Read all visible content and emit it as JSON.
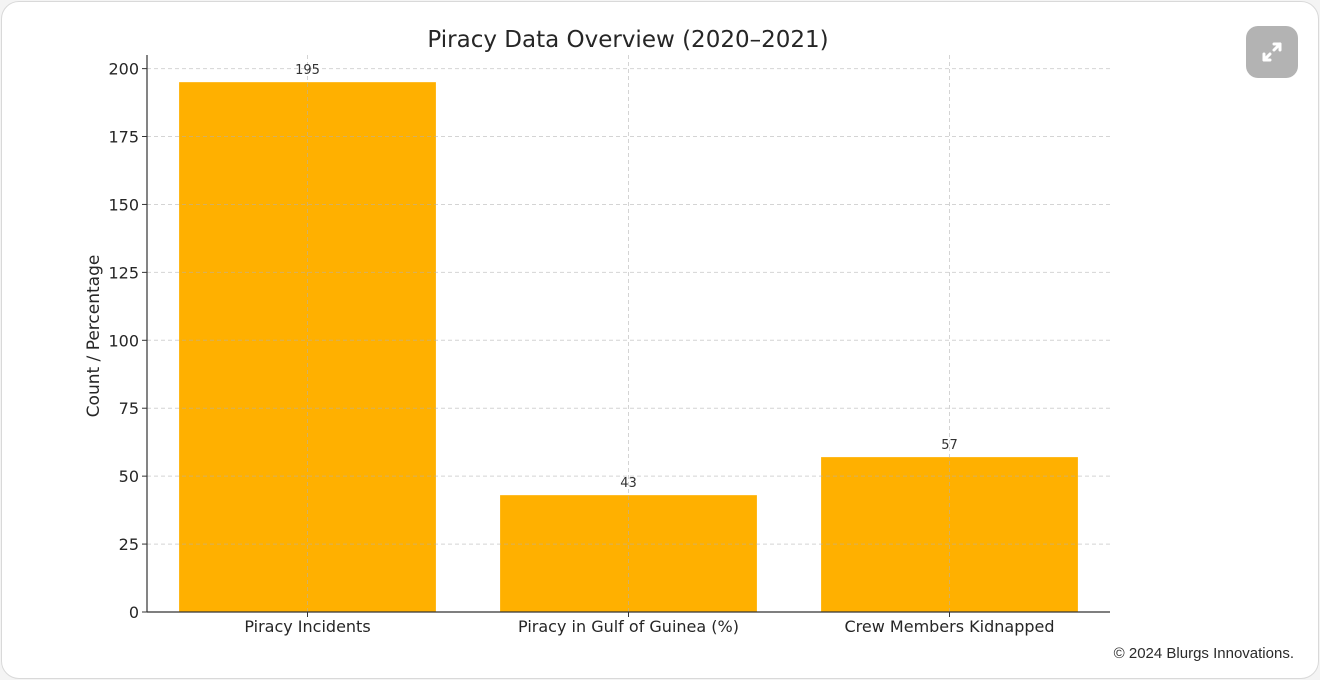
{
  "chart_data": {
    "type": "bar",
    "title": "Piracy Data Overview (2020–2021)",
    "xlabel": "",
    "ylabel": "Count / Percentage",
    "categories": [
      "Piracy Incidents",
      "Piracy in Gulf of Guinea (%)",
      "Crew Members Kidnapped"
    ],
    "values": [
      195,
      43,
      57
    ],
    "data_labels": [
      "195",
      "43",
      "57"
    ],
    "ylim": [
      0,
      205
    ],
    "yticks": [
      0,
      25,
      50,
      75,
      100,
      125,
      150,
      175,
      200
    ],
    "grid": true,
    "bar_color": "#ffb000"
  },
  "ui": {
    "expand_icon": "expand-icon",
    "footer_text": "© 2024 Blurgs Innovations."
  }
}
